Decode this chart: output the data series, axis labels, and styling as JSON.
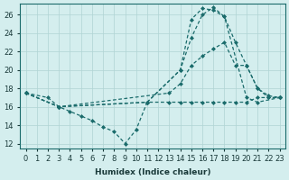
{
  "xlabel": "Humidex (Indice chaleur)",
  "bg_color": "#d4eeee",
  "line_color": "#1a6b6b",
  "grid_color": "#b0d4d4",
  "xlim": [
    -0.5,
    23.5
  ],
  "ylim": [
    11.5,
    27.2
  ],
  "xticks": [
    0,
    1,
    2,
    3,
    4,
    5,
    6,
    7,
    8,
    9,
    10,
    11,
    12,
    13,
    14,
    15,
    16,
    17,
    18,
    19,
    20,
    21,
    22,
    23
  ],
  "yticks": [
    12,
    14,
    16,
    18,
    20,
    22,
    24,
    26
  ],
  "lines": [
    {
      "x": [
        0,
        2,
        3,
        4,
        5,
        6,
        7,
        8,
        9,
        10,
        11,
        13,
        14,
        15,
        16,
        17,
        18,
        19,
        20,
        21,
        22,
        23
      ],
      "y": [
        17.5,
        17.0,
        16.0,
        15.5,
        15.0,
        14.5,
        13.8,
        13.3,
        12.0,
        13.5,
        16.5,
        16.5,
        16.5,
        16.5,
        16.5,
        16.5,
        16.5,
        16.5,
        16.5,
        17.0,
        17.0,
        17.0
      ]
    },
    {
      "x": [
        0,
        3,
        11,
        14,
        15,
        16,
        17,
        18,
        20,
        21,
        23
      ],
      "y": [
        17.5,
        16.0,
        16.5,
        20.0,
        25.5,
        26.7,
        26.5,
        25.8,
        17.0,
        16.5,
        17.0
      ]
    },
    {
      "x": [
        0,
        3,
        13,
        14,
        15,
        16,
        17,
        18,
        19,
        20,
        21,
        22,
        23
      ],
      "y": [
        17.5,
        16.0,
        17.5,
        18.5,
        20.5,
        21.5,
        22.3,
        23.0,
        20.5,
        20.5,
        18.0,
        17.2,
        17.0
      ]
    },
    {
      "x": [
        0,
        3,
        11,
        14,
        15,
        16,
        17,
        18,
        19,
        20,
        21,
        22,
        23
      ],
      "y": [
        17.5,
        16.0,
        16.5,
        20.0,
        23.5,
        26.0,
        26.8,
        25.8,
        23.0,
        20.5,
        18.0,
        17.0,
        17.0
      ]
    }
  ]
}
